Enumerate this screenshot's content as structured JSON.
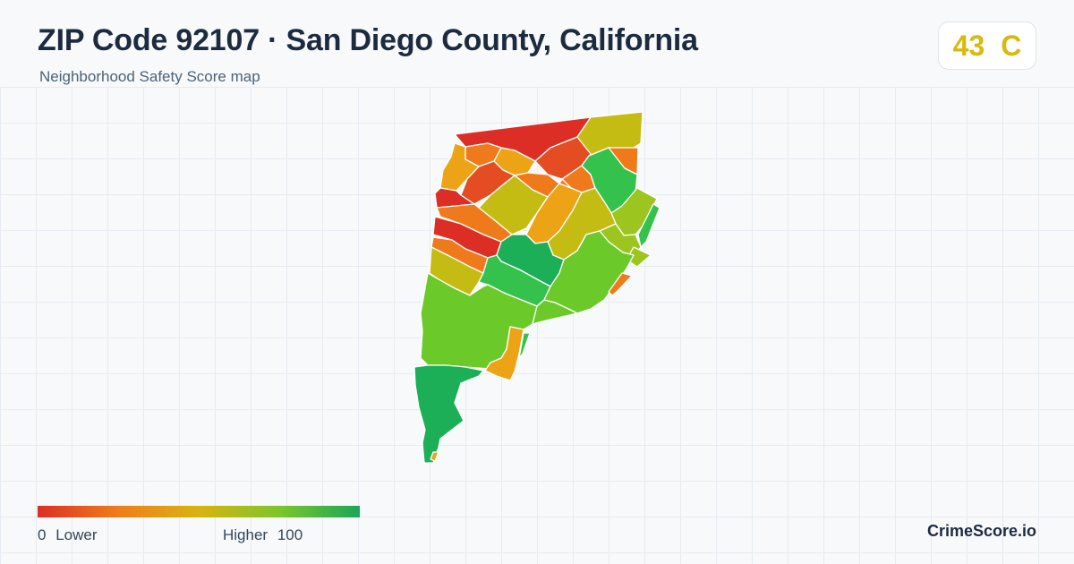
{
  "header": {
    "title": "ZIP Code 92107 · San Diego County, California",
    "subtitle": "Neighborhood Safety Score map"
  },
  "score_badge": {
    "score": "43",
    "grade": "C",
    "color": "#d8b90f"
  },
  "legend": {
    "min_value": "0",
    "min_label": "Lower",
    "max_label": "Higher",
    "max_value": "100",
    "gradient_colors": [
      "#dc2f25",
      "#ef7d1a",
      "#d9b310",
      "#7cc62a",
      "#1aa65a"
    ]
  },
  "map": {
    "colors": {
      "red": "#dd2e26",
      "red_orange": "#e44c22",
      "orange": "#ef7a1c",
      "amber": "#eca416",
      "olive": "#c4bc12",
      "yellow_green": "#9cc51f",
      "green": "#6cc92a",
      "bright_green": "#34c24c",
      "deep_green": "#1caf58"
    }
  },
  "brand": {
    "name": "CrimeScore.io"
  }
}
